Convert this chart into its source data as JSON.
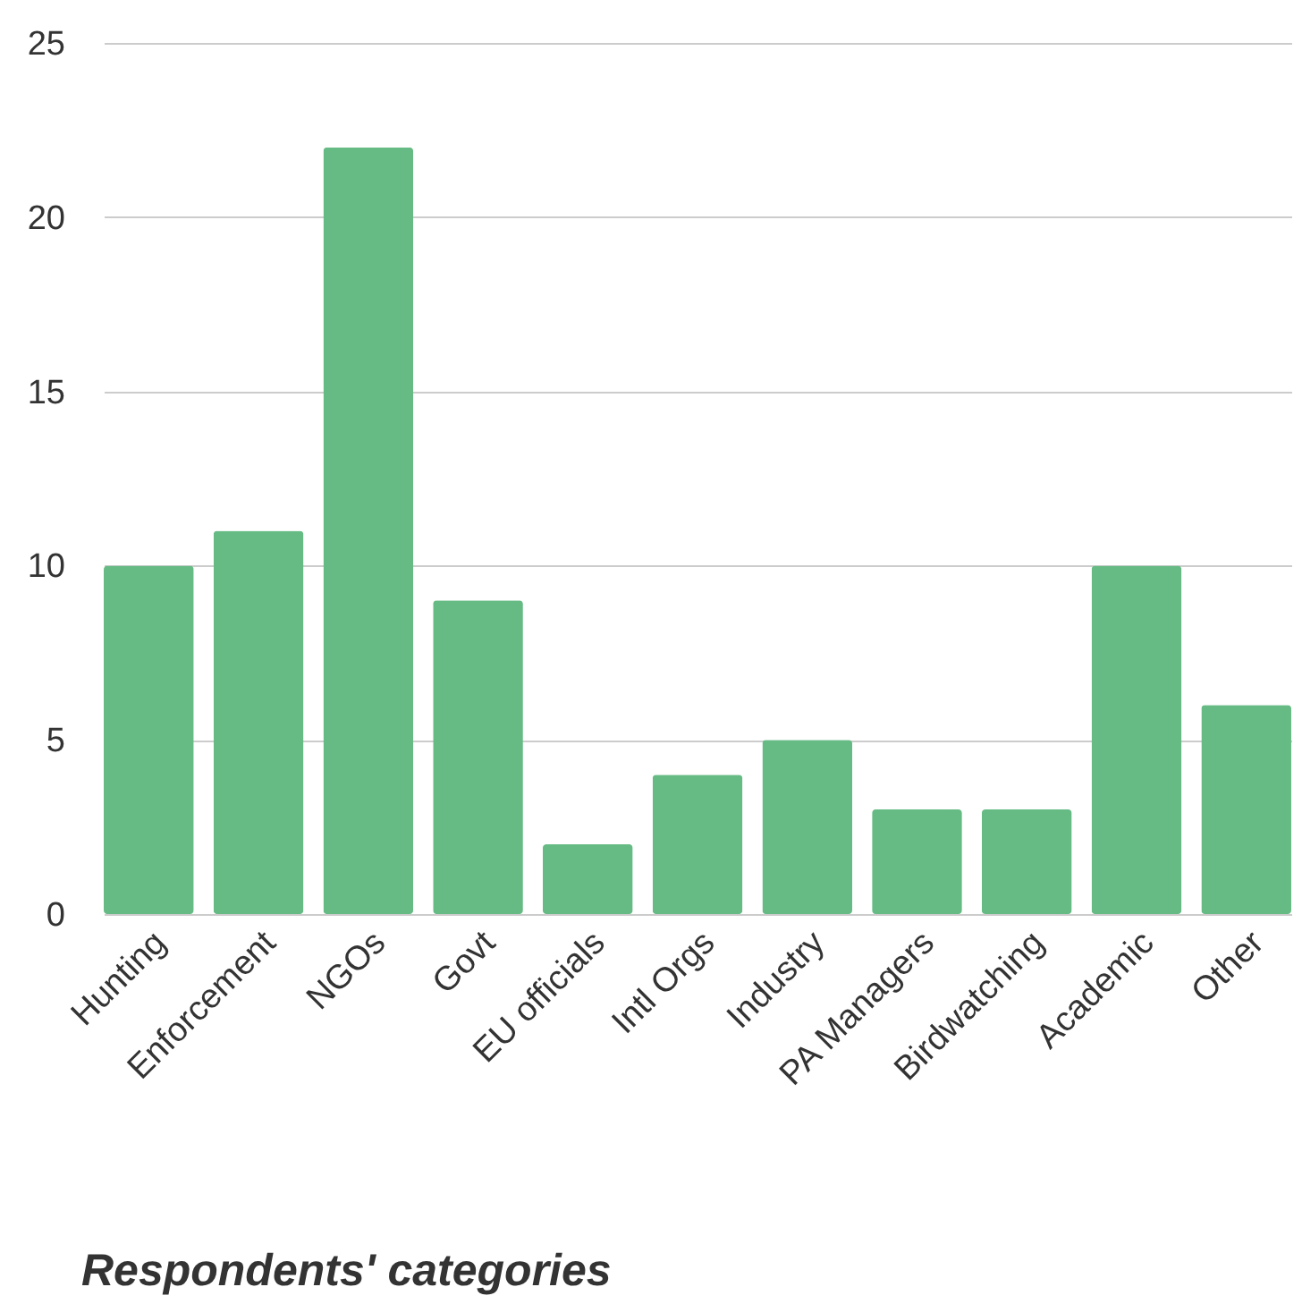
{
  "chart_data": {
    "type": "bar",
    "xlabel": "Respondents' categories",
    "categories": [
      "Hunting",
      "Enforcement",
      "NGOs",
      "Govt",
      "EU officials",
      "Intl Orgs",
      "Industry",
      "PA Managers",
      "Birdwatching",
      "Academic",
      "Other"
    ],
    "values": [
      10,
      11,
      22,
      9,
      2,
      4,
      5,
      3,
      3,
      10,
      6
    ],
    "color": "#66bb84",
    "ylim": [
      0,
      25
    ],
    "yticks": [
      0,
      5,
      10,
      15,
      20,
      25
    ],
    "grid": "y"
  }
}
